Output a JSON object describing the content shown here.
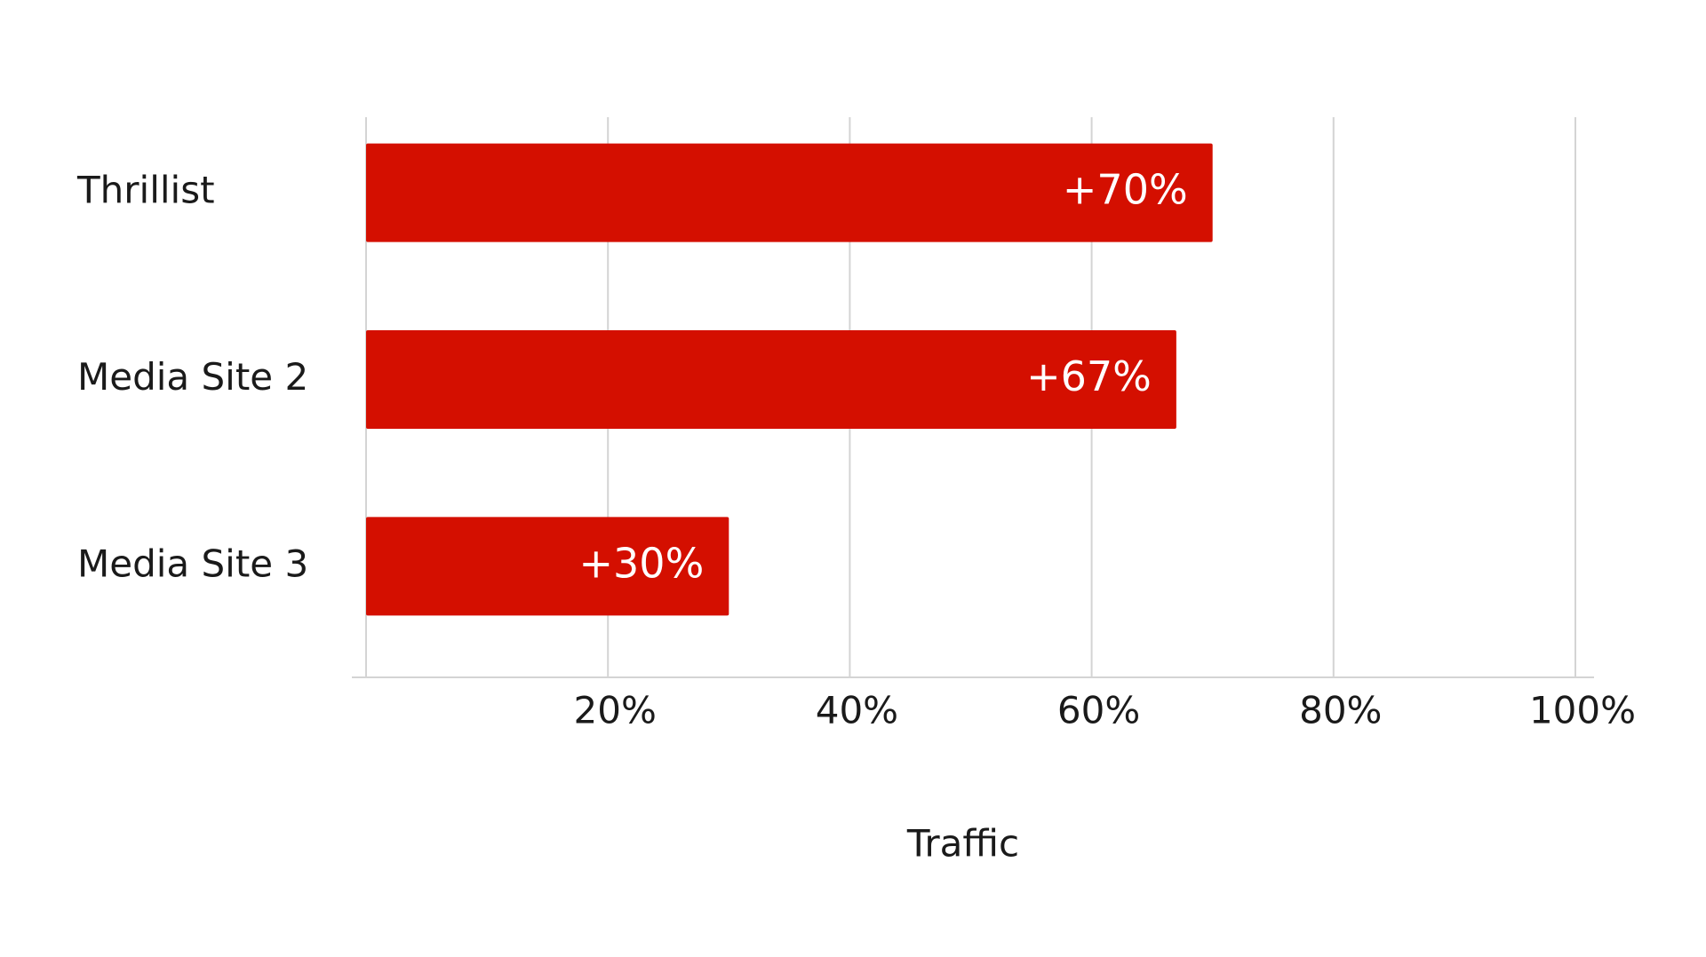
{
  "chart_data": {
    "type": "bar",
    "orientation": "horizontal",
    "x_label": "Traffic",
    "categories": [
      "Thrillist",
      "Media Site 2",
      "Media Site 3"
    ],
    "values": [
      70,
      67,
      30
    ],
    "value_labels": [
      "+70%",
      "+67%",
      "+30%"
    ],
    "color": "#d40f00",
    "xlim": [
      0,
      100
    ],
    "xticks": [
      {
        "value": 20,
        "label": "20%"
      },
      {
        "value": 40,
        "label": "40%"
      },
      {
        "value": 60,
        "label": "60%"
      },
      {
        "value": 80,
        "label": "80%"
      },
      {
        "value": 100,
        "label": "100%"
      }
    ],
    "grid": true
  }
}
